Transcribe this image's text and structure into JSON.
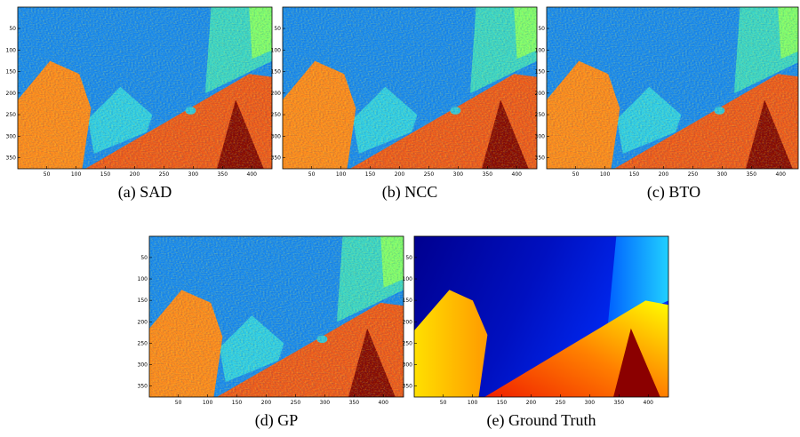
{
  "panels": [
    {
      "caption": "(a) SAD",
      "noisy": true,
      "xlim": [
        0.5,
        434.5
      ],
      "ylim": [
        0.5,
        375.5
      ],
      "xticks": [
        50,
        100,
        150,
        200,
        250,
        300,
        350,
        400
      ],
      "yticks": [
        50,
        100,
        150,
        200,
        250,
        300,
        350
      ]
    },
    {
      "caption": "(b) NCC",
      "noisy": true,
      "xlim": [
        0.5,
        434.5
      ],
      "ylim": [
        0.5,
        375.5
      ],
      "xticks": [
        50,
        100,
        150,
        200,
        250,
        300,
        350,
        400
      ],
      "yticks": [
        50,
        100,
        150,
        200,
        250,
        300,
        350
      ]
    },
    {
      "caption": "(c) BTO",
      "noisy": true,
      "xlim": [
        0.5,
        434.5
      ],
      "ylim": [
        0.5,
        375.5
      ],
      "xticks": [
        50,
        100,
        150,
        200,
        250,
        300,
        350,
        400
      ],
      "yticks": [
        50,
        100,
        150,
        200,
        250,
        300,
        350
      ]
    },
    {
      "caption": "(d) GP",
      "noisy": true,
      "xlim": [
        0.5,
        434.5
      ],
      "ylim": [
        0.5,
        375.5
      ],
      "xticks": [
        50,
        100,
        150,
        200,
        250,
        300,
        350,
        400
      ],
      "yticks": [
        50,
        100,
        150,
        200,
        250,
        300,
        350
      ]
    },
    {
      "caption": "(e) Ground Truth",
      "noisy": false,
      "xlim": [
        0.5,
        434.5
      ],
      "ylim": [
        0.5,
        375.5
      ],
      "xticks": [
        50,
        100,
        150,
        200,
        250,
        300,
        350,
        400
      ],
      "yticks": [
        50,
        100,
        150,
        200,
        250,
        300,
        350
      ]
    }
  ]
}
